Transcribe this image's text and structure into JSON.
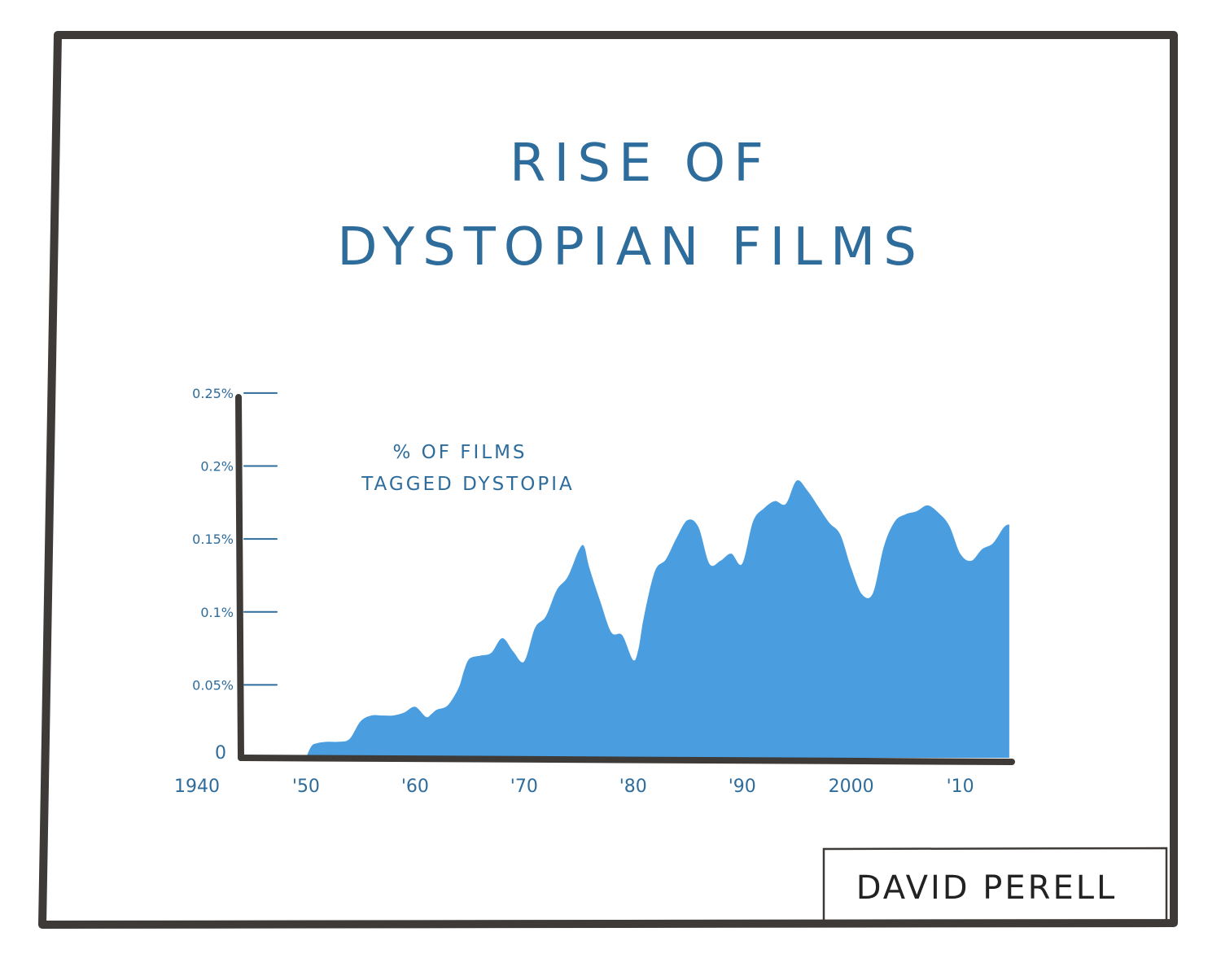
{
  "colors": {
    "frame": "#3d3a37",
    "text": "#2e6c9c",
    "area": "#4a9ddf",
    "signature": "#222222"
  },
  "chart_data": {
    "type": "area",
    "title_lines": [
      "RISE OF",
      "DYSTOPIAN FILMS"
    ],
    "annotation_lines": [
      "% OF FILMS",
      "TAGGED DYSTOPIA"
    ],
    "x_tick_values": [
      1940,
      1950,
      1960,
      1970,
      1980,
      1990,
      2000,
      2010
    ],
    "x_tick_labels": [
      "1940",
      "'50",
      "'60",
      "'70",
      "'80",
      "'90",
      "2000",
      "'10"
    ],
    "y_tick_values": [
      0,
      0.05,
      0.1,
      0.15,
      0.2,
      0.25
    ],
    "y_tick_labels": [
      "0",
      "0.05%",
      "0.1%",
      "0.15%",
      "0.2%",
      "0.25%"
    ],
    "xlim": [
      1935,
      2016
    ],
    "ylim": [
      0,
      0.26
    ],
    "series": [
      {
        "x": [
          1950.0,
          1950.5,
          1951.0,
          1952.0,
          1953.0,
          1954.0,
          1955.0,
          1956.0,
          1957.0,
          1958.0,
          1959.0,
          1960.0,
          1961.0,
          1961.5,
          1962.0,
          1963.0,
          1964.0,
          1964.5,
          1965.0,
          1966.0,
          1967.0,
          1968.0,
          1969.0,
          1970.0,
          1971.0,
          1972.0,
          1973.0,
          1974.0,
          1975.0,
          1975.5,
          1976.0,
          1977.0,
          1978.0,
          1979.0,
          1980.0,
          1980.5,
          1981.0,
          1982.0,
          1983.0,
          1984.0,
          1985.0,
          1986.0,
          1987.0,
          1988.0,
          1989.0,
          1990.0,
          1991.0,
          1992.0,
          1993.0,
          1994.0,
          1995.0,
          1996.0,
          1997.0,
          1998.0,
          1999.0,
          2000.0,
          2001.0,
          2002.0,
          2003.0,
          2004.0,
          2005.0,
          2006.0,
          2007.0,
          2008.0,
          2009.0,
          2010.0,
          2011.0,
          2012.0,
          2013.0,
          2014.0,
          2014.5
        ],
        "y": [
          0.0,
          0.008,
          0.01,
          0.011,
          0.011,
          0.013,
          0.025,
          0.029,
          0.029,
          0.029,
          0.031,
          0.035,
          0.028,
          0.03,
          0.033,
          0.036,
          0.048,
          0.06,
          0.068,
          0.07,
          0.072,
          0.082,
          0.073,
          0.066,
          0.089,
          0.097,
          0.115,
          0.124,
          0.142,
          0.145,
          0.13,
          0.107,
          0.086,
          0.084,
          0.067,
          0.075,
          0.097,
          0.128,
          0.136,
          0.151,
          0.163,
          0.158,
          0.133,
          0.135,
          0.14,
          0.133,
          0.162,
          0.171,
          0.176,
          0.174,
          0.19,
          0.183,
          0.172,
          0.161,
          0.153,
          0.13,
          0.112,
          0.113,
          0.145,
          0.162,
          0.167,
          0.169,
          0.173,
          0.168,
          0.159,
          0.14,
          0.135,
          0.143,
          0.147,
          0.158,
          0.16
        ]
      }
    ]
  },
  "signature": {
    "text": "DAVID PERELL"
  }
}
